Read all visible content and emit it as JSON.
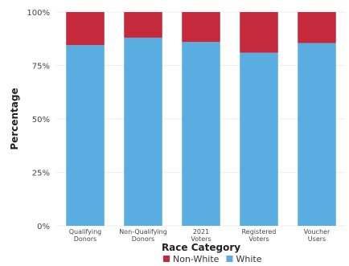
{
  "chart_data": {
    "type": "bar",
    "stacked": true,
    "percent": true,
    "title": "",
    "xlabel": "Race Category",
    "ylabel": "Percentage",
    "ylim": [
      0,
      100
    ],
    "yticks": [
      0,
      25,
      50,
      75,
      100
    ],
    "ytick_labels": [
      "0%",
      "25%",
      "50%",
      "75%",
      "100%"
    ],
    "categories": [
      [
        "Qualifying",
        "Donors"
      ],
      [
        "Non-Qualifying",
        "Donors"
      ],
      [
        "2021",
        "Voters"
      ],
      [
        "Registered",
        "Voters"
      ],
      [
        "Voucher",
        "Users"
      ]
    ],
    "series": [
      {
        "name": "White",
        "color": "#5aade0",
        "values": [
          84.5,
          88,
          86,
          81,
          85.5
        ]
      },
      {
        "name": "Non-White",
        "color": "#c42a3c",
        "values": [
          15.5,
          12,
          14,
          19,
          14.5
        ]
      }
    ],
    "legend": {
      "position": "bottom",
      "order": [
        "Non-White",
        "White"
      ]
    },
    "grid": true
  }
}
